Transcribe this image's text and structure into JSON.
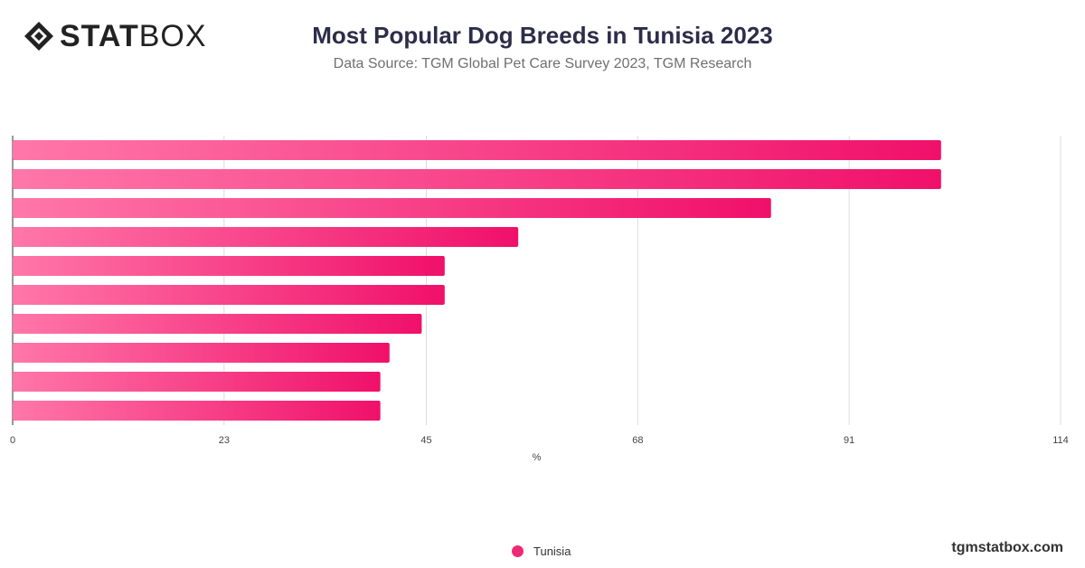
{
  "header": {
    "logo_bold": "STAT",
    "logo_light": "BOX",
    "title": "Most Popular Dog Breeds in Tunisia 2023",
    "subtitle": "Data Source: TGM Global Pet Care Survey 2023, TGM Research"
  },
  "footer": {
    "site": "tgmstatbox.com"
  },
  "colors": {
    "bar_start": "#ff77a9",
    "bar_end": "#f0106a",
    "grid": "#dddddd",
    "legend": "#ee2a76"
  },
  "chart_data": {
    "type": "bar",
    "orientation": "horizontal",
    "title": "Most Popular Dog Breeds in Tunisia 2023",
    "subtitle": "Data Source: TGM Global Pet Care Survey 2023, TGM Research",
    "xlabel": "%",
    "ylabel": "",
    "xlim": [
      0,
      114
    ],
    "x_ticks": [
      0,
      23,
      45,
      68,
      91,
      114
    ],
    "grid": true,
    "legend_position": "bottom",
    "series": [
      {
        "name": "Tunisia",
        "values": [
          101,
          101,
          82.5,
          55,
          47,
          47,
          44.5,
          41,
          40,
          40
        ]
      }
    ]
  }
}
